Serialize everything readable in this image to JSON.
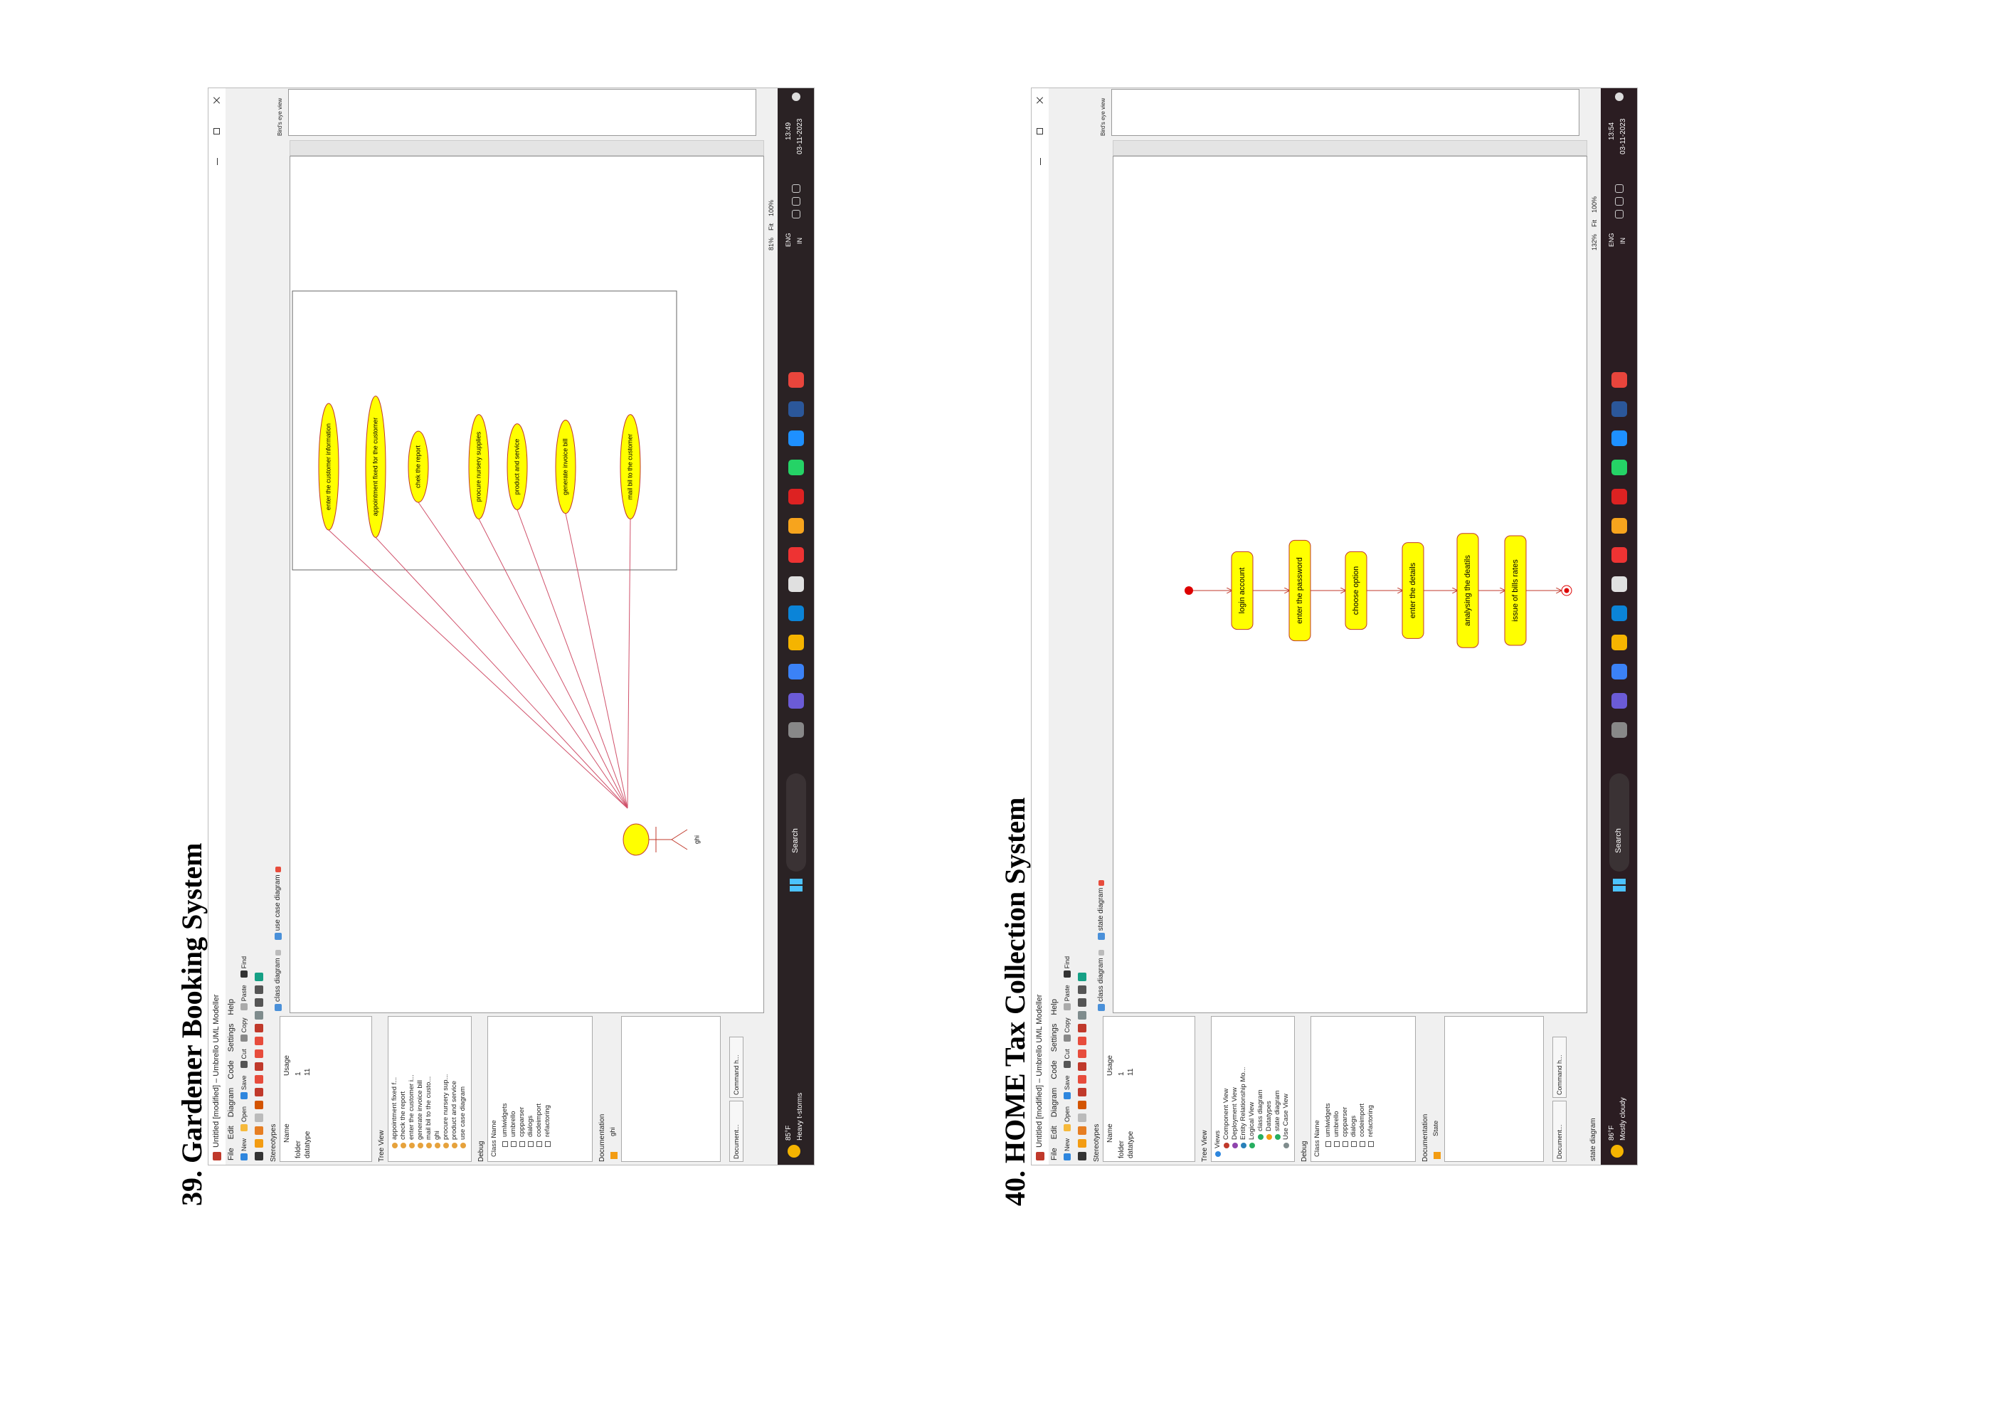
{
  "sections": [
    {
      "heading": "39. Gardener Booking System",
      "window_title": "Untitled [modified] – Umbrello UML Modeller",
      "menu": [
        "File",
        "Edit",
        "Diagram",
        "Code",
        "Settings",
        "Help"
      ],
      "toolbar": [
        "New",
        "Open",
        "Save",
        "Cut",
        "Copy",
        "Paste",
        "Find"
      ],
      "stereotypes": {
        "title": "Stereotypes",
        "columns": [
          "Name",
          "Usage"
        ],
        "rows": [
          [
            "folder",
            "1"
          ],
          [
            "datatype",
            "11"
          ]
        ]
      },
      "tree_view": {
        "title": "Tree View",
        "items": [
          "appointment fixed f...",
          "check the report",
          "enter the customer i...",
          "generate invoice bill",
          "mail bil to the custo...",
          "ghi",
          "procure nursery sup...",
          "product and service",
          "use case diagram"
        ]
      },
      "debug": {
        "title": "Debug",
        "column": "Class Name",
        "items": [
          "umlwidgets",
          "umbrello",
          "cppparser",
          "dialogs",
          "codeimport",
          "refactoring"
        ]
      },
      "documentation": {
        "title": "Documentation",
        "name": "ghi"
      },
      "bottom_tabs": [
        "Document...",
        "Command h..."
      ],
      "tabs": [
        "class diagram",
        "use case diagram"
      ],
      "birds_eye": "Bird's eye view",
      "zoom": [
        "81%",
        "Fit",
        "100%"
      ],
      "diagram": {
        "type": "use_case",
        "actor": "ghi",
        "use_cases": [
          "enter the customer information",
          "appointment fixed for the customer",
          "chek the report",
          "procure nursery supplies",
          "product and service",
          "generate invoice bill",
          "mail bil to the customer"
        ]
      },
      "taskbar": {
        "temperature": "85°F",
        "weather": "Heavy t-storms",
        "search": "Search",
        "language": "ENG",
        "region": "IN",
        "time": "13:49",
        "date": "03-11-2023"
      }
    },
    {
      "heading": "40. HOME Tax Collection System",
      "window_title": "Untitled [modified] – Umbrello UML Modeller",
      "menu": [
        "File",
        "Edit",
        "Diagram",
        "Code",
        "Settings",
        "Help"
      ],
      "toolbar": [
        "New",
        "Open",
        "Save",
        "Cut",
        "Copy",
        "Paste",
        "Find"
      ],
      "stereotypes": {
        "title": "Stereotypes",
        "columns": [
          "Name",
          "Usage"
        ],
        "rows": [
          [
            "folder",
            "1"
          ],
          [
            "datatype",
            "11"
          ]
        ]
      },
      "tree_view": {
        "title": "Tree View",
        "items": [
          "Views",
          "Component View",
          "Deployment View",
          "Entity Relationship Mo...",
          "Logical View",
          "class diagram",
          "Datatypes",
          "state diagram",
          "Use Case View"
        ]
      },
      "debug": {
        "title": "Debug",
        "column": "Class Name",
        "items": [
          "umlwidgets",
          "umbrello",
          "cppparser",
          "dialogs",
          "codeimport",
          "refactoring"
        ]
      },
      "documentation": {
        "title": "Documentation",
        "name": "State"
      },
      "bottom_tabs": [
        "Document...",
        "Command h..."
      ],
      "status_text": "state diagram",
      "tabs": [
        "class diagram",
        "state diagram"
      ],
      "birds_eye": "Bird's eye view",
      "zoom": [
        "132%",
        "Fit",
        "100%"
      ],
      "diagram": {
        "type": "state",
        "states": [
          "login account",
          "enter the password",
          "choose option",
          "enter the details",
          "analysing the deatils",
          "issue of bills rates"
        ]
      },
      "taskbar": {
        "temperature": "86°F",
        "weather": "Mostly cloudy",
        "search": "Search",
        "language": "ENG",
        "region": "IN",
        "time": "13:54",
        "date": "03-11-2023"
      }
    }
  ]
}
